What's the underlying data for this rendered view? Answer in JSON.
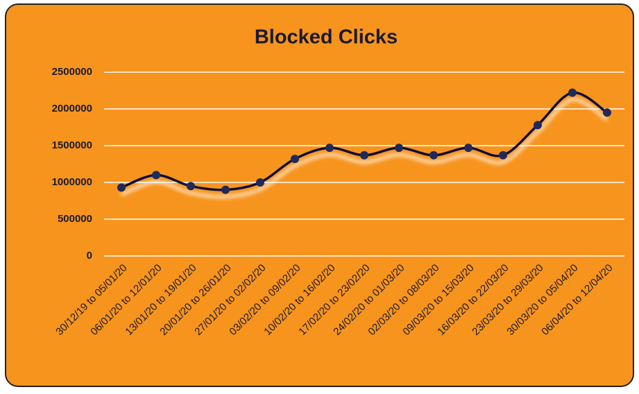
{
  "chart_data": {
    "type": "line",
    "title": "Blocked Clicks",
    "categories": [
      "30/12/19 to 05/01/20",
      "06/01/20 to 12/01/20",
      "13/01/20 to 19/01/20",
      "20/01/20 to 26/01/20",
      "27/01/20 to 02/02/20",
      "03/02/20 to 09/02/20",
      "10/02/20 to 16/02/20",
      "17/02/20 to 23/02/20",
      "24/02/20 to 01/03/20",
      "02/03/20 to 08/03/20",
      "09/03/20 to 15/03/20",
      "16/03/20 to 22/03/20",
      "23/03/20 to 29/03/20",
      "30/03/20 to 05/04/20",
      "06/04/20 to 12/04/20"
    ],
    "values": [
      930000,
      1100000,
      950000,
      900000,
      1000000,
      1320000,
      1470000,
      1370000,
      1470000,
      1370000,
      1470000,
      1370000,
      1780000,
      2220000,
      1950000
    ],
    "color": "#0d0d3a",
    "marker_color": "#1f2a5c",
    "ylim": [
      0,
      2500000
    ],
    "yticks": [
      0,
      500000,
      1000000,
      1500000,
      2000000,
      2500000
    ],
    "grid": true
  }
}
